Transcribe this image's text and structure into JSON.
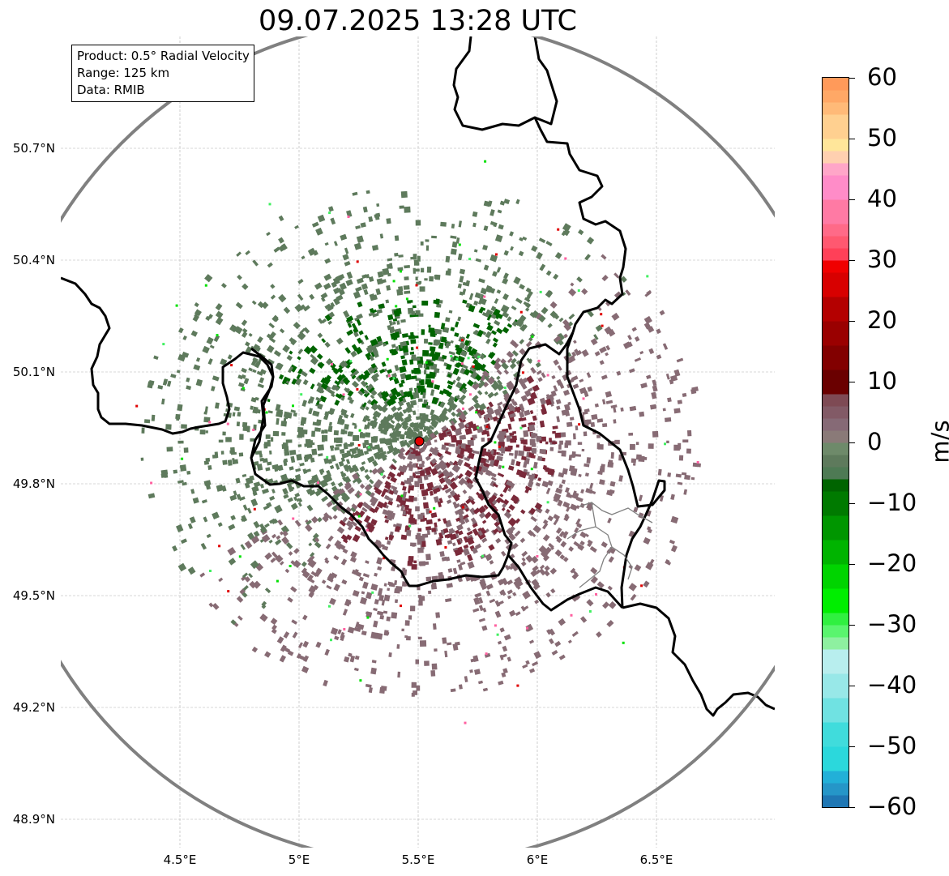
{
  "title": "09.07.2025 13:28 UTC",
  "info_box": {
    "product": "Product: 0.5° Radial Velocity",
    "range": "Range: 125 km",
    "data": "Data: RMIB"
  },
  "map": {
    "lon_range": [
      4.0,
      7.0
    ],
    "lat_range": [
      48.8,
      50.99
    ],
    "radar_site": {
      "lon": 5.505,
      "lat": 49.914
    },
    "range_km": 125,
    "x_ticks": [
      {
        "lon": 4.5,
        "label": "4.5°E"
      },
      {
        "lon": 5.0,
        "label": "5°E"
      },
      {
        "lon": 5.5,
        "label": "5.5°E"
      },
      {
        "lon": 6.0,
        "label": "6°E"
      },
      {
        "lon": 6.5,
        "label": "6.5°E"
      }
    ],
    "y_ticks": [
      {
        "lat": 50.7,
        "label": "50.7°N"
      },
      {
        "lat": 50.4,
        "label": "50.4°N"
      },
      {
        "lat": 50.1,
        "label": "50.1°N"
      },
      {
        "lat": 49.8,
        "label": "49.8°N"
      },
      {
        "lat": 49.5,
        "label": "49.5°N"
      },
      {
        "lat": 49.2,
        "label": "49.2°N"
      },
      {
        "lat": 48.9,
        "label": "48.9°N"
      }
    ],
    "colors": {
      "border": "#000000",
      "range_ring": "#808080",
      "grid": "#b0b0b0",
      "site_marker": "#e00000",
      "inbound_strong": "#006400",
      "inbound_weak": "#5e7a5c",
      "outbound_weak": "#876b74",
      "outbound_strong": "#7a2a3a"
    }
  },
  "colorbar": {
    "unit": "m/s",
    "min": -60,
    "max": 60,
    "ticks": [
      {
        "value": 60,
        "label": "60"
      },
      {
        "value": 50,
        "label": "50"
      },
      {
        "value": 40,
        "label": "40"
      },
      {
        "value": 30,
        "label": "30"
      },
      {
        "value": 20,
        "label": "20"
      },
      {
        "value": 10,
        "label": "10"
      },
      {
        "value": 0,
        "label": "0"
      },
      {
        "value": -10,
        "label": "−10"
      },
      {
        "value": -20,
        "label": "−20"
      },
      {
        "value": -30,
        "label": "−30"
      },
      {
        "value": -40,
        "label": "−40"
      },
      {
        "value": -50,
        "label": "−50"
      },
      {
        "value": -60,
        "label": "−60"
      }
    ],
    "bands": [
      {
        "from": -60,
        "to": -58,
        "color": "#1f77b4"
      },
      {
        "from": -58,
        "to": -56,
        "color": "#2596c8"
      },
      {
        "from": -56,
        "to": -54,
        "color": "#22b0d8"
      },
      {
        "from": -54,
        "to": -50,
        "color": "#2bd8dc"
      },
      {
        "from": -50,
        "to": -46,
        "color": "#40dcdc"
      },
      {
        "from": -46,
        "to": -42,
        "color": "#70e2e2"
      },
      {
        "from": -42,
        "to": -38,
        "color": "#98e8e8"
      },
      {
        "from": -38,
        "to": -34,
        "color": "#b8eeee"
      },
      {
        "from": -34,
        "to": -32,
        "color": "#8ef0a0"
      },
      {
        "from": -32,
        "to": -30,
        "color": "#5af56e"
      },
      {
        "from": -30,
        "to": -28,
        "color": "#30f040"
      },
      {
        "from": -28,
        "to": -24,
        "color": "#00ee00"
      },
      {
        "from": -24,
        "to": -20,
        "color": "#00d400"
      },
      {
        "from": -20,
        "to": -16,
        "color": "#00b400"
      },
      {
        "from": -16,
        "to": -12,
        "color": "#009600"
      },
      {
        "from": -12,
        "to": -8,
        "color": "#007a00"
      },
      {
        "from": -8,
        "to": -6,
        "color": "#006400"
      },
      {
        "from": -6,
        "to": -4,
        "color": "#4e7a54"
      },
      {
        "from": -4,
        "to": -2,
        "color": "#5e7a5c"
      },
      {
        "from": -2,
        "to": 0,
        "color": "#6e8a6a"
      },
      {
        "from": 0,
        "to": 2,
        "color": "#8a7a78"
      },
      {
        "from": 2,
        "to": 4,
        "color": "#866a76"
      },
      {
        "from": 4,
        "to": 6,
        "color": "#825a66"
      },
      {
        "from": 6,
        "to": 8,
        "color": "#7e4a54"
      },
      {
        "from": 8,
        "to": 12,
        "color": "#6a0000"
      },
      {
        "from": 12,
        "to": 16,
        "color": "#820000"
      },
      {
        "from": 16,
        "to": 20,
        "color": "#9a0000"
      },
      {
        "from": 20,
        "to": 24,
        "color": "#b40000"
      },
      {
        "from": 24,
        "to": 28,
        "color": "#d80000"
      },
      {
        "from": 28,
        "to": 30,
        "color": "#f00000"
      },
      {
        "from": 30,
        "to": 32,
        "color": "#ff4058"
      },
      {
        "from": 32,
        "to": 34,
        "color": "#ff5870"
      },
      {
        "from": 34,
        "to": 36,
        "color": "#ff6a88"
      },
      {
        "from": 36,
        "to": 40,
        "color": "#ff7aa4"
      },
      {
        "from": 40,
        "to": 44,
        "color": "#ff8cc8"
      },
      {
        "from": 44,
        "to": 46,
        "color": "#ffa6c8"
      },
      {
        "from": 46,
        "to": 48,
        "color": "#ffd0b0"
      },
      {
        "from": 48,
        "to": 50,
        "color": "#ffe69a"
      },
      {
        "from": 50,
        "to": 54,
        "color": "#ffd090"
      },
      {
        "from": 54,
        "to": 56,
        "color": "#ffba78"
      },
      {
        "from": 56,
        "to": 58,
        "color": "#ffa866"
      },
      {
        "from": 58,
        "to": 60,
        "color": "#ff9a5a"
      }
    ]
  }
}
